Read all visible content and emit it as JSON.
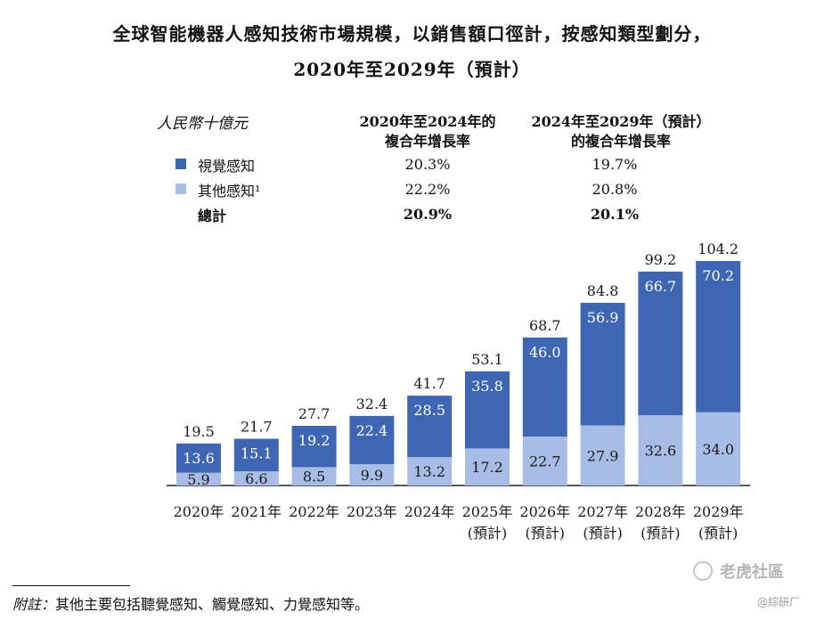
{
  "title_line1": "全球智能機器人感知技術市場規模，以銷售額口徑計，按感知類型劃分，",
  "title_line2": "2020年至2029年（預計）",
  "legend_table": {
    "unit": "人民幣十億元",
    "col1_line1": "2020年至2024年的",
    "col1_line2": "複合年增長率",
    "col2_line1": "2024年至2029年（預計）",
    "col2_line2": "的複合年增長率",
    "rows": [
      {
        "label": "視覺感知",
        "cagr1": "20.3%",
        "cagr2": "19.7%",
        "color": "#3f66b3"
      },
      {
        "label": "其他感知¹",
        "cagr1": "22.2%",
        "cagr2": "20.8%",
        "color": "#a7bde6"
      },
      {
        "label": "總計",
        "cagr1": "20.9%",
        "cagr2": "20.1%"
      }
    ]
  },
  "chart_data": {
    "type": "bar",
    "stacked": true,
    "categories": [
      "2020年",
      "2021年",
      "2022年",
      "2023年",
      "2024年",
      "2025年",
      "2026年",
      "2027年",
      "2028年",
      "2029年"
    ],
    "category_sublabels": [
      "",
      "",
      "",
      "",
      "",
      "(預計)",
      "(預計)",
      "(預計)",
      "(預計)",
      "(預計)"
    ],
    "series": [
      {
        "name": "其他感知",
        "values": [
          5.9,
          6.6,
          8.5,
          9.9,
          13.2,
          17.2,
          22.7,
          27.9,
          32.6,
          34.0
        ],
        "color": "#a7bde6"
      },
      {
        "name": "視覺感知",
        "values": [
          13.6,
          15.1,
          19.2,
          22.4,
          28.5,
          35.8,
          46.0,
          56.9,
          66.7,
          70.2
        ],
        "color": "#3f66b3"
      }
    ],
    "totals": [
      19.5,
      21.7,
      27.7,
      32.4,
      41.7,
      53.1,
      68.7,
      84.8,
      99.2,
      104.2
    ],
    "ylim": [
      0,
      104.2
    ]
  },
  "footnote": {
    "label": "附註：",
    "text": "其他主要包括聽覺感知、觸覺感知、力覺感知等。"
  },
  "watermark": {
    "brand": "老虎社區",
    "handle": "@綜研厂"
  }
}
